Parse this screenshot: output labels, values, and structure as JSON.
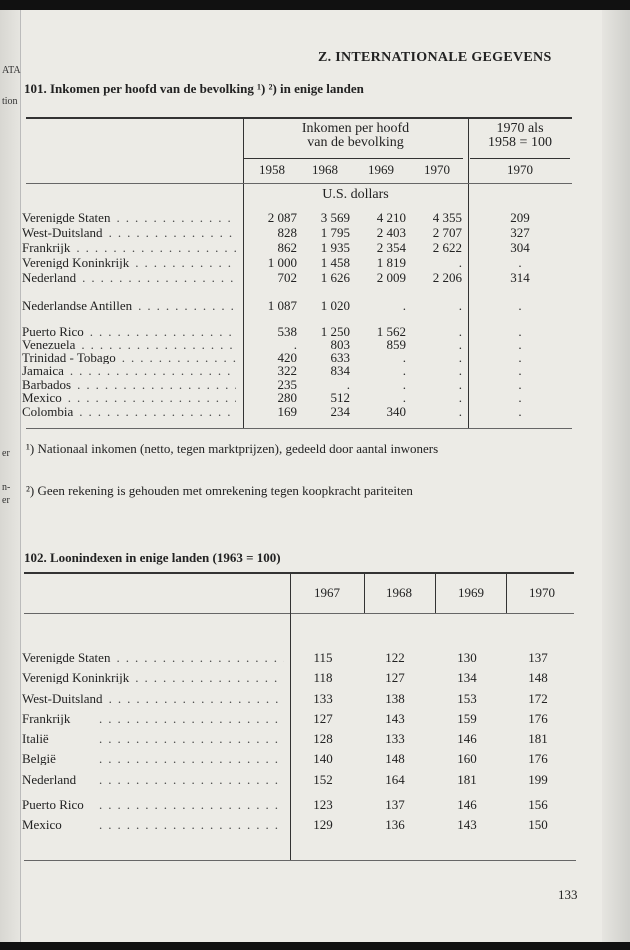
{
  "header": "Z. INTERNATIONALE GEGEVENS",
  "margin_fragments": [
    "ATA",
    "tion",
    "er",
    "n-",
    "er"
  ],
  "table1": {
    "title": "101. Inkomen per hoofd van de bevolking ¹) ²) in enige landen",
    "group_header_1": "Inkomen per hoofd",
    "group_header_2": "van de bevolking",
    "index_header_1": "1970 als",
    "index_header_2": "1958 = 100",
    "years": [
      "1958",
      "1968",
      "1969",
      "1970"
    ],
    "index_year": "1970",
    "unit": "U.S. dollars",
    "rows": [
      {
        "country": "Verenigde Staten",
        "values": [
          "2 087",
          "3 569",
          "4 210",
          "4 355"
        ],
        "index": "209"
      },
      {
        "country": "West-Duitsland",
        "values": [
          "828",
          "1 795",
          "2 403",
          "2 707"
        ],
        "index": "327"
      },
      {
        "country": "Frankrijk",
        "values": [
          "862",
          "1 935",
          "2 354",
          "2 622"
        ],
        "index": "304"
      },
      {
        "country": "Verenigd Koninkrijk",
        "values": [
          "1 000",
          "1 458",
          "1 819",
          "."
        ],
        "index": "."
      },
      {
        "country": "Nederland",
        "values": [
          "702",
          "1 626",
          "2 009",
          "2 206"
        ],
        "index": "314"
      },
      {
        "country": "Nederlandse Antillen",
        "values": [
          "1 087",
          "1 020",
          ".",
          "."
        ],
        "index": "."
      },
      {
        "country": "Puerto Rico",
        "values": [
          "538",
          "1 250",
          "1 562",
          "."
        ],
        "index": "."
      },
      {
        "country": "Venezuela",
        "values": [
          ".",
          "803",
          "859",
          "."
        ],
        "index": "."
      },
      {
        "country": "Trinidad - Tobago",
        "values": [
          "420",
          "633",
          ".",
          "."
        ],
        "index": "."
      },
      {
        "country": "Jamaica",
        "values": [
          "322",
          "834",
          ".",
          "."
        ],
        "index": "."
      },
      {
        "country": "Barbados",
        "values": [
          "235",
          ".",
          ".",
          "."
        ],
        "index": "."
      },
      {
        "country": "Mexico",
        "values": [
          "280",
          "512",
          ".",
          "."
        ],
        "index": "."
      },
      {
        "country": "Colombia",
        "values": [
          "169",
          "234",
          "340",
          "."
        ],
        "index": "."
      }
    ],
    "footnotes": [
      "¹) Nationaal inkomen (netto, tegen marktprijzen), gedeeld door aantal inwoners",
      "²) Geen rekening is gehouden met omrekening tegen koopkracht pariteiten"
    ]
  },
  "table2": {
    "title": "102. Loonindexen in enige landen (1963 = 100)",
    "years": [
      "1967",
      "1968",
      "1969",
      "1970"
    ],
    "rows": [
      {
        "country": "Verenigde Staten",
        "values": [
          "115",
          "122",
          "130",
          "137"
        ]
      },
      {
        "country": "Verenigd Koninkrijk",
        "values": [
          "118",
          "127",
          "134",
          "148"
        ]
      },
      {
        "country": "West-Duitsland",
        "values": [
          "133",
          "138",
          "153",
          "172"
        ]
      },
      {
        "country": "Frankrijk",
        "values": [
          "127",
          "143",
          "159",
          "176"
        ]
      },
      {
        "country": "Italië",
        "values": [
          "128",
          "133",
          "146",
          "181"
        ]
      },
      {
        "country": "België",
        "values": [
          "140",
          "148",
          "160",
          "176"
        ]
      },
      {
        "country": "Nederland",
        "values": [
          "152",
          "164",
          "181",
          "199"
        ]
      },
      {
        "country": "Puerto Rico",
        "values": [
          "123",
          "137",
          "146",
          "156"
        ]
      },
      {
        "country": "Mexico",
        "values": [
          "129",
          "136",
          "143",
          "150"
        ]
      }
    ]
  },
  "page_number": "133"
}
